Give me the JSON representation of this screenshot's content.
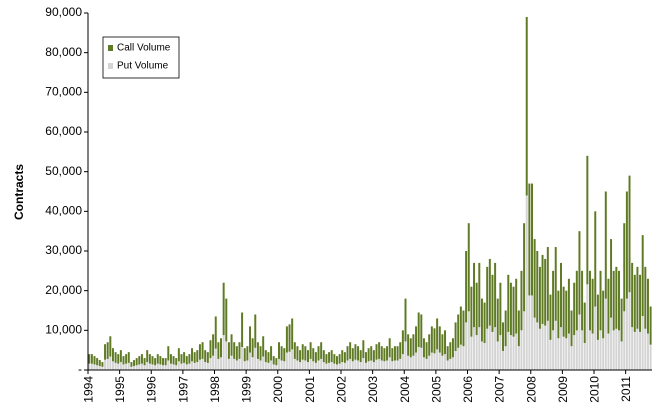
{
  "chart_data": {
    "type": "stacked_bar",
    "y_label": "Contracts",
    "ylim": [
      0,
      90000
    ],
    "yticks": [
      {
        "value": 0,
        "label": "-"
      },
      {
        "value": 10000,
        "label": "10,000"
      },
      {
        "value": 20000,
        "label": "20,000"
      },
      {
        "value": 30000,
        "label": "30,000"
      },
      {
        "value": 40000,
        "label": "40,000"
      },
      {
        "value": 50000,
        "label": "50,000"
      },
      {
        "value": 60000,
        "label": "60,000"
      },
      {
        "value": 70000,
        "label": "70,000"
      },
      {
        "value": 80000,
        "label": "80,000"
      },
      {
        "value": 90000,
        "label": "90,000"
      }
    ],
    "legend_position": "upper left",
    "categories": [
      "1994",
      null,
      null,
      null,
      null,
      null,
      null,
      null,
      null,
      null,
      null,
      null,
      "1995",
      null,
      null,
      null,
      null,
      null,
      null,
      null,
      null,
      null,
      null,
      null,
      "1996",
      null,
      null,
      null,
      null,
      null,
      null,
      null,
      null,
      null,
      null,
      null,
      "1997",
      null,
      null,
      null,
      null,
      null,
      null,
      null,
      null,
      null,
      null,
      null,
      "1998",
      null,
      null,
      null,
      null,
      null,
      null,
      null,
      null,
      null,
      null,
      null,
      "1999",
      null,
      null,
      null,
      null,
      null,
      null,
      null,
      null,
      null,
      null,
      null,
      "2000",
      null,
      null,
      null,
      null,
      null,
      null,
      null,
      null,
      null,
      null,
      null,
      "2001",
      null,
      null,
      null,
      null,
      null,
      null,
      null,
      null,
      null,
      null,
      null,
      "2002",
      null,
      null,
      null,
      null,
      null,
      null,
      null,
      null,
      null,
      null,
      null,
      "2003",
      null,
      null,
      null,
      null,
      null,
      null,
      null,
      null,
      null,
      null,
      null,
      "2004",
      null,
      null,
      null,
      null,
      null,
      null,
      null,
      null,
      null,
      null,
      null,
      "2005",
      null,
      null,
      null,
      null,
      null,
      null,
      null,
      null,
      null,
      null,
      null,
      "2006",
      null,
      null,
      null,
      null,
      null,
      null,
      null,
      null,
      null,
      null,
      null,
      "2007",
      null,
      null,
      null,
      null,
      null,
      null,
      null,
      null,
      null,
      null,
      null,
      "2008",
      null,
      null,
      null,
      null,
      null,
      null,
      null,
      null,
      null,
      null,
      null,
      "2009",
      null,
      null,
      null,
      null,
      null,
      null,
      null,
      null,
      null,
      null,
      null,
      "2010",
      null,
      null,
      null,
      null,
      null,
      null,
      null,
      null,
      null,
      null,
      null,
      "2011",
      null,
      null,
      null,
      null,
      null,
      null,
      null,
      null,
      null
    ],
    "series": [
      {
        "name": "Put Volume",
        "color": "#d4d4d4",
        "values": [
          1600,
          1600,
          1400,
          1200,
          1000,
          800,
          2600,
          2800,
          3400,
          2200,
          1800,
          1600,
          2000,
          1400,
          1600,
          1800,
          800,
          1000,
          1200,
          1400,
          1600,
          1200,
          2000,
          1600,
          1400,
          1200,
          1600,
          1400,
          1200,
          1200,
          2400,
          1600,
          1400,
          1200,
          2200,
          1600,
          1800,
          1400,
          1600,
          2200,
          1800,
          2000,
          2600,
          2800,
          2000,
          1800,
          3000,
          3600,
          5400,
          2800,
          3200,
          8800,
          7200,
          2800,
          3600,
          2800,
          2400,
          2800,
          5800,
          2200,
          2400,
          4400,
          3200,
          5600,
          2800,
          2400,
          3400,
          2000,
          1800,
          2400,
          1400,
          1200,
          2800,
          2400,
          2200,
          4400,
          4600,
          5200,
          2800,
          2400,
          2000,
          2600,
          2400,
          2000,
          2800,
          2200,
          1800,
          2400,
          2800,
          2000,
          1600,
          1800,
          2000,
          1600,
          1400,
          1600,
          2000,
          1800,
          2400,
          2800,
          2200,
          2600,
          2400,
          2000,
          3000,
          1800,
          2200,
          2400,
          2000,
          2600,
          2800,
          2400,
          2200,
          2400,
          3200,
          2200,
          2400,
          2400,
          2800,
          4000,
          7200,
          3600,
          3200,
          3600,
          4400,
          5800,
          5600,
          3200,
          2800,
          3600,
          4400,
          4200,
          5200,
          4400,
          3600,
          4000,
          2400,
          2800,
          3200,
          4800,
          5600,
          6400,
          6000,
          12000,
          14800,
          8400,
          10800,
          8800,
          10800,
          7200,
          6800,
          10400,
          11200,
          9600,
          10800,
          7200,
          8800,
          4800,
          6000,
          9600,
          8800,
          8400,
          9200,
          6000,
          10000,
          14800,
          44000,
          18800,
          18800,
          13200,
          12000,
          10400,
          11600,
          11200,
          12400,
          7600,
          10000,
          12400,
          8000,
          10800,
          8400,
          8000,
          9200,
          6000,
          8800,
          10000,
          14000,
          10000,
          6800,
          21600,
          10000,
          9200,
          16000,
          7600,
          10000,
          8000,
          18000,
          9200,
          13200,
          10000,
          10400,
          10000,
          7200,
          14800,
          18000,
          19600,
          10800,
          9600,
          10400,
          9600,
          13600,
          10400,
          9200,
          6400
        ]
      },
      {
        "name": "Call Volume",
        "color": "#5f7a24",
        "values": [
          2400,
          2400,
          2100,
          1800,
          1500,
          1200,
          3900,
          4200,
          5100,
          3300,
          2700,
          2400,
          3000,
          2100,
          2400,
          2700,
          1200,
          1500,
          1800,
          2100,
          2400,
          1800,
          3000,
          2400,
          2100,
          1800,
          2400,
          2100,
          1800,
          1800,
          3600,
          2400,
          2100,
          1800,
          3300,
          2400,
          2700,
          2100,
          2400,
          3300,
          2700,
          3000,
          3900,
          4200,
          3000,
          2700,
          4500,
          5400,
          8100,
          4200,
          4800,
          13200,
          10800,
          4200,
          5400,
          4200,
          3600,
          4200,
          8700,
          3300,
          3600,
          6600,
          4800,
          8400,
          4200,
          3600,
          5100,
          3000,
          2700,
          3600,
          2100,
          1800,
          4200,
          3600,
          3300,
          6600,
          6900,
          7800,
          4200,
          3600,
          3000,
          3900,
          3600,
          3000,
          4200,
          3300,
          2700,
          3600,
          4200,
          3000,
          2400,
          2700,
          3000,
          2400,
          2100,
          2400,
          3000,
          2700,
          3600,
          4200,
          3300,
          3900,
          3600,
          3000,
          4500,
          2700,
          3300,
          3600,
          3000,
          3900,
          4200,
          3600,
          3300,
          3600,
          4800,
          3300,
          3600,
          3600,
          4200,
          6000,
          10800,
          5400,
          4800,
          5400,
          6600,
          8700,
          8400,
          4800,
          4200,
          5400,
          6600,
          6300,
          7800,
          6600,
          5400,
          6000,
          3600,
          4200,
          4800,
          7200,
          8400,
          9600,
          9000,
          18000,
          22200,
          12600,
          16200,
          13200,
          16200,
          10800,
          10200,
          15600,
          16800,
          14400,
          16200,
          10800,
          13200,
          7200,
          9000,
          14400,
          13200,
          12600,
          13800,
          9000,
          15000,
          22200,
          45000,
          28200,
          28200,
          19800,
          18000,
          15600,
          17400,
          16800,
          18600,
          11400,
          15000,
          18600,
          12000,
          16200,
          12600,
          12000,
          13800,
          9000,
          13200,
          15000,
          21000,
          15000,
          10200,
          32400,
          15000,
          13800,
          24000,
          11400,
          15000,
          12000,
          27000,
          13800,
          19800,
          15000,
          15600,
          15000,
          10800,
          22200,
          27000,
          29400,
          16200,
          14400,
          15600,
          14400,
          20400,
          15600,
          13800,
          9600
        ]
      }
    ]
  }
}
